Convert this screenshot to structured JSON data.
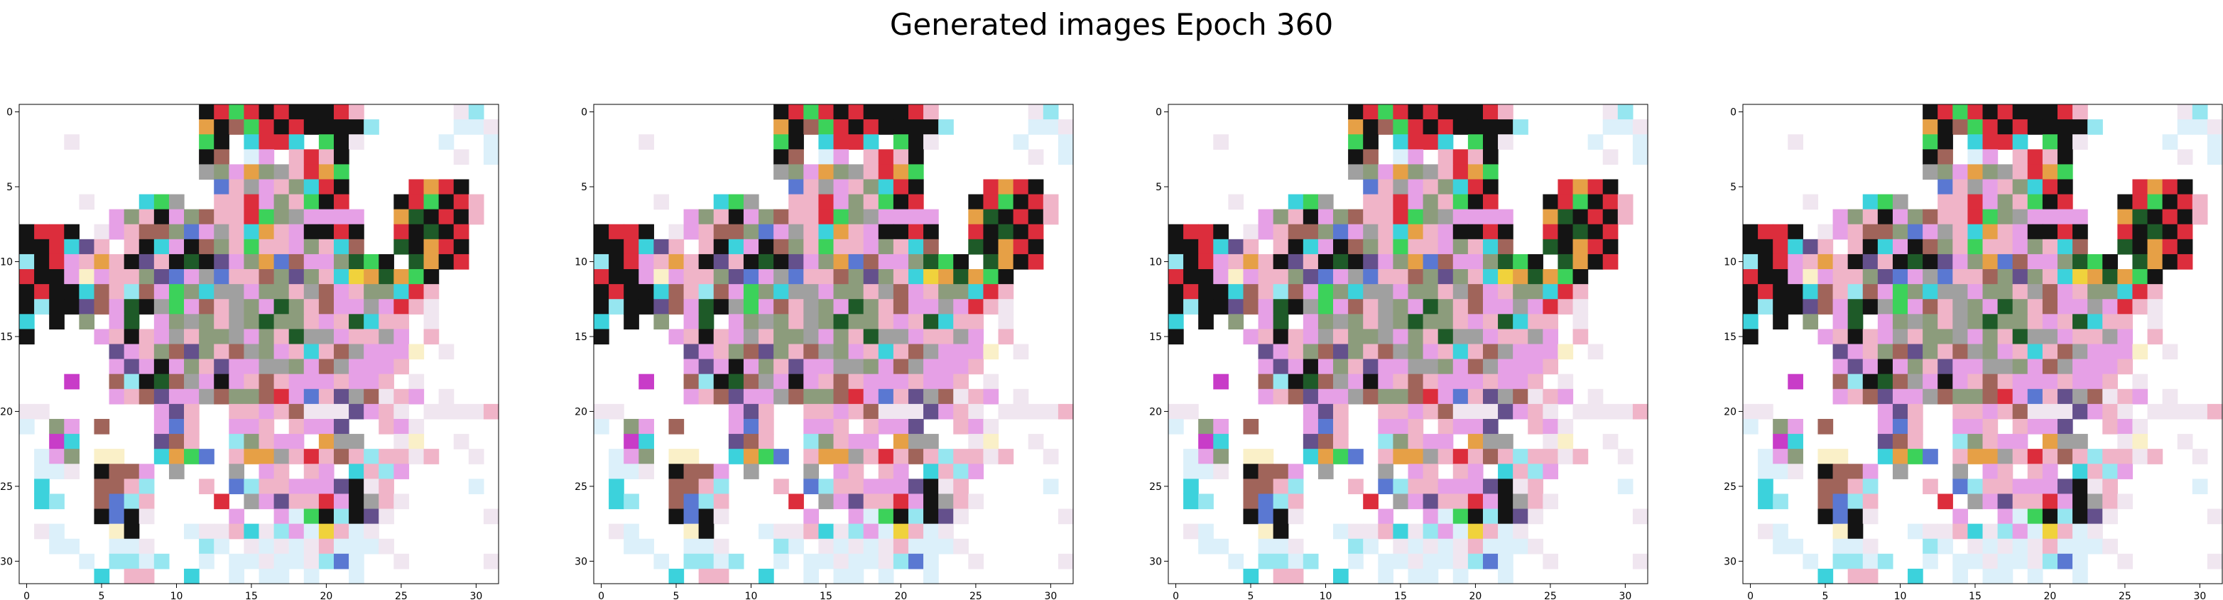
{
  "figure": {
    "suptitle": "Generated images Epoch 360"
  },
  "chart_data": {
    "type": "heatmap",
    "grid": false,
    "panel_count": 4,
    "matrix_size": [
      32,
      32
    ],
    "xlim": [
      -0.5,
      31.5
    ],
    "ylim": [
      31.5,
      -0.5
    ],
    "xticks": [
      0,
      5,
      10,
      15,
      20,
      25,
      30
    ],
    "yticks": [
      0,
      5,
      10,
      15,
      20,
      25,
      30
    ],
    "palette": {
      "w": "#ffffff",
      "k": "#141414",
      "r": "#dc2d3c",
      "g": "#1e5a28",
      "G": "#3cd25a",
      "c": "#3cd2dc",
      "C": "#96e6f0",
      "m": "#e6a0e6",
      "M": "#c83cc8",
      "p": "#f0b4c8",
      "o": "#e6a046",
      "y": "#f0d23c",
      "b": "#5a78d2",
      "n": "#a0645a",
      "t": "#8c9c7c",
      "v": "#64508c",
      "e": "#a0a0a0",
      "q": "#f0e6f0",
      "s": "#dcf0fa",
      "l": "#faf0c8"
    },
    "panels": [
      {
        "rows": [
          "wwwwwwwwwwwwkrGrkrkkkrpwwwwwwqCw",
          "wwwwwwwwwwwwoknGrkrkkkkCwwwwwssq",
          "wwwqwwwwwwwwGkwcrrcwGkqwwwwwswws",
          "wwwwwwwwwwwwknwsmwprpkwwwwwwwqws",
          "wwwwwwwwwwwwetmoteproGwwwwwwwwww",
          "wwwwwwwwwwwwwbpemptcrkwwwwrorkww",
          "wwwwqwwwcGewwpprmtpGkrwwwkrGkrpw",
          "wwwwwwmtpkmtnpprGtemmmmwwogkrkpw",
          "krrkwqmpnntbmepcopmkkrkwwrkgkrww",
          "kkrcvpwpkcmkntpGppmtpcnwwgkorkww",
          "CkrmpopkvpkgkvmtobnmmtgGkwgokrww",
          "rkkmlmpptvbmebppntvtpcyogoGkwwww",
          "krkkcnpCnmGtceemttpenmpttcrpwwww",
          "kCkkvnmgkeGmnpetmgtpnmmemrpqwwww",
          "cwkwtwmgwmtetpetgttpmpgcppwqwwww",
          "kwwwwmpkpmepttemtpgeemppemwpwwww",
          "wwwwwwvmptnvtpnetmpcpnemmmlwqwww",
          "wwwwwwmvmkmtpvmmeetmnemmmpwwwwww",
          "wwwMwwnCkgnemkmpnpmmmpmmpwqwwwww",
          "wwwwwwmpnvmmenttnrmbpvenqpmwqwww",
          "qqwwwwwwwmvpwwppmpnqqqvmpqwqqqqp",
          "swtmwnwwwmbpwwmmpwpmmvwwpmqwwwww",
          "wwMcwwwwwvnpwwCtpmmwoeewwqlwwqww",
          "wsmtwllwwcoGbwpooeprpnpCppqpwwqw",
          "wssqwknnmwewwwewmpwpmwcpCmwwwwww",
          "wcwwwnnpCwwwpwbCppmmmvkqpwwwwwsw",
          "wcCwwnbCpwwwwrwemvpprmkepqwwwwww",
          "wwwwwkbkqwwwwwmwwmsGkCkvqwwwwwwq",
          "wqswwwlkwwwsqqpcqCmsypsqwwwwwwww",
          "wwsswwssqwwwCswqsqsqpsssqwwwwwww",
          "wwwwswCCsCwwswssqssqCbswwqwwwwwq",
          "wwwwwcwppwwcwwswsswswwswwwwwwwww"
        ]
      },
      {
        "rows": [
          "wwwwwwwwwwwwkrGrkrkkkrpwwwwwwqCw",
          "wwwwwwwwwwwwoknGrkrkkkkCwwwwwssq",
          "wwwqwwwwwwwwGkwcrrcwGkqwwwwwswws",
          "wwwwwwwwwwwwknwsmwprpkwwwwwwwqws",
          "wwwwwwwwwwwwetmoteproGwwwwwwwwww",
          "wwwwwwwwwwwwwbpemptcrkwwwwrorkww",
          "wwwwqwwwcGewwpprmtpGkrwwwkrGkrpw",
          "wwwwwwmtpkmtnpprGtemmmmwwogkrkpw",
          "krrkwqmpnntbmepcopmkkrkwwrkgkrww",
          "kkrcvpwpkcmkntpGppmtpcnwwgkorkww",
          "CkrmpopkvpkgkvmtobnmmtgGkwgokrww",
          "rkkmlmpptvbmebppntvtpcyogoGkwwww",
          "krkkcnpCnmGtceemttpenmpttcrpwwww",
          "kCkkvnmgkeGmnpetmgtpnmmemrpqwwww",
          "cwkwtwmgwmtetpetgttpmpgcppwqwwww",
          "kwwwwmpkpmepttemtpgeemppemwpwwww",
          "wwwwwwvmptnvtpnetmpcpnemmmlwqwww",
          "wwwwwwmvmkmtpvmmeetmnemmmpwwwwww",
          "wwwMwwnCkgnemkmpnpmmmpmmpwqwwwww",
          "wwwwwwmpnvmmenttnrmbpvenqpmwqwww",
          "qqwwwwwwwmvpwwppmpnqqqvmpqwqqqqp",
          "swtmwnwwwmbpwwmmpwpmmvwwpmqwwwww",
          "wwMcwwwwwvnpwwCtpmmwoeewwqlwwqww",
          "wsmtwllwwcoGbwpooeprpnpCppqpwwqw",
          "wssqwknnmwewwwewmpwpmwcpCmwwwwww",
          "wcwwwnnpCwwwpwbCppmmmvkqpwwwwwsw",
          "wcCwwnbCpwwwwrwemvpprmkepqwwwwww",
          "wwwwwkbkqwwwwwmwwmsGkCkvqwwwwwwq",
          "wqswwwlkwwwsqqpcqCmsypsqwwwwwwww",
          "wwsswwssqwwwCswqsqsqpsssqwwwwwww",
          "wwwwswCCsCwwswssqssqCbswwqwwwwwq",
          "wwwwwcwppwwcwwswsswswwswwwwwwwww"
        ]
      },
      {
        "rows": [
          "wwwwwwwwwwwwkrGrkrkkkrpwwwwwwqCw",
          "wwwwwwwwwwwwoknGrkrkkkkCwwwwwssq",
          "wwwqwwwwwwwwGkwcrrcwGkqwwwwwswws",
          "wwwwwwwwwwwwknwsmwprpkwwwwwwwqws",
          "wwwwwwwwwwwwetmoteproGwwwwwwwwww",
          "wwwwwwwwwwwwwbpemptcrkwwwwrorkww",
          "wwwwqwwwcGewwpprmtpGkrwwwkrGkrpw",
          "wwwwwwmtpkmtnpprGtemmmmwwogkrkpw",
          "krrkwqmpnntbmepcopmkkrkwwrkgkrww",
          "kkrcvpwpkcmkntpGppmtpcnwwgkorkww",
          "CkrmpopkvpkgkvmtobnmmtgGkwgokrww",
          "rkkmlmpptvbmebppntvtpcyogoGkwwww",
          "krkkcnpCnmGtceemttpenmpttcrpwwww",
          "kCkkvnmgkeGmnpetmgtpnmmemrpqwwww",
          "cwkwtwmgwmtetpetgttpmpgcppwqwwww",
          "kwwwwmpkpmepttemtpgeemppemwpwwww",
          "wwwwwwvmptnvtpnetmpcpnemmmlwqwww",
          "wwwwwwmvmkmtpvmmeetmnemmmpwwwwww",
          "wwwMwwnCkgnemkmpnpmmmpmmpwqwwwww",
          "wwwwwwmpnvmmenttnrmbpvenqpmwqwww",
          "qqwwwwwwwmvpwwppmpnqqqvmpqwqqqqp",
          "swtmwnwwwmbpwwmmpwpmmvwwpmqwwwww",
          "wwMcwwwwwvnpwwCtpmmwoeewwqlwwqww",
          "wsmtwllwwcoGbwpooeprpnpCppqpwwqw",
          "wssqwknnmwewwwewmpwpmwcpCmwwwwww",
          "wcwwwnnpCwwwpwbCppmmmvkqpwwwwwsw",
          "wcCwwnbCpwwwwrwemvpprmkepqwwwwww",
          "wwwwwkbkqwwwwwmwwmsGkCkvqwwwwwwq",
          "wqswwwlkwwwsqqpcqCmsypsqwwwwwwww",
          "wwsswwssqwwwCswqsqsqpsssqwwwwwww",
          "wwwwswCCsCwwswssqssqCbswwqwwwwwq",
          "wwwwwcwppwwcwwswsswswwswwwwwwwww"
        ]
      },
      {
        "rows": [
          "wwwwwwwwwwwwkrGrkrkkkrpwwwwwwqCw",
          "wwwwwwwwwwwwoknGrkrkkkkCwwwwwssq",
          "wwwqwwwwwwwwGkwcrrcwGkqwwwwwswws",
          "wwwwwwwwwwwwknwsmwprpkwwwwwwwqws",
          "wwwwwwwwwwwwetmoteproGwwwwwwwwww",
          "wwwwwwwwwwwwwbpemptcrkwwwwrorkww",
          "wwwwqwwwcGewwpprmtpGkrwwwkrGkrpw",
          "wwwwwwmtpkmtnpprGtemmmmwwogkrkpw",
          "krrkwqmpnntbmepcopmkkrkwwrkgkrww",
          "kkrcvpwpkcmkntpGppmtpcnwwgkorkww",
          "CkrmpopkvpkgkvmtobnmmtgGkwgokrww",
          "rkkmlmpptvbmebppntvtpcyogoGkwwww",
          "krkkcnpCnmGtceemttpenmpttcrpwwww",
          "kCkkvnmgkeGmnpetmgtpnmmemrpqwwww",
          "cwkwtwmgwmtetpetgttpmpgcppwqwwww",
          "kwwwwmpkpmepttemtpgeemppemwpwwww",
          "wwwwwwvmptnvtpnetmpcpnemmmlwqwww",
          "wwwwwwmvmkmtpvmmeetmnemmmpwwwwww",
          "wwwMwwnCkgnemkmpnpmmmpmmpwqwwwww",
          "wwwwwwmpnvmmenttnrmbpvenqpmwqwww",
          "qqwwwwwwwmvpwwppmpnqqqvmpqwqqqqp",
          "swtmwnwwwmbpwwmmpwpmmvwwpmqwwwww",
          "wwMcwwwwwvnpwwCtpmmwoeewwqlwwqww",
          "wsmtwllwwcoGbwpooeprpnpCppqpwwqw",
          "wssqwknnmwewwwewmpwpmwcpCmwwwwww",
          "wcwwwnnpCwwwpwbCppmmmvkqpwwwwwsw",
          "wcCwwnbCpwwwwrwemvpprmkepqwwwwww",
          "wwwwwkbkqwwwwwmwwmsGkCkvqwwwwwwq",
          "wqswwwlkwwwsqqpcqCmsypsqwwwwwwww",
          "wwsswwssqwwwCswqsqsqpsssqwwwwwww",
          "wwwwswCCsCwwswssqssqCbswwqwwwwwq",
          "wwwwwcwppwwcwwswsswswwswwwwwwwww"
        ]
      }
    ]
  }
}
